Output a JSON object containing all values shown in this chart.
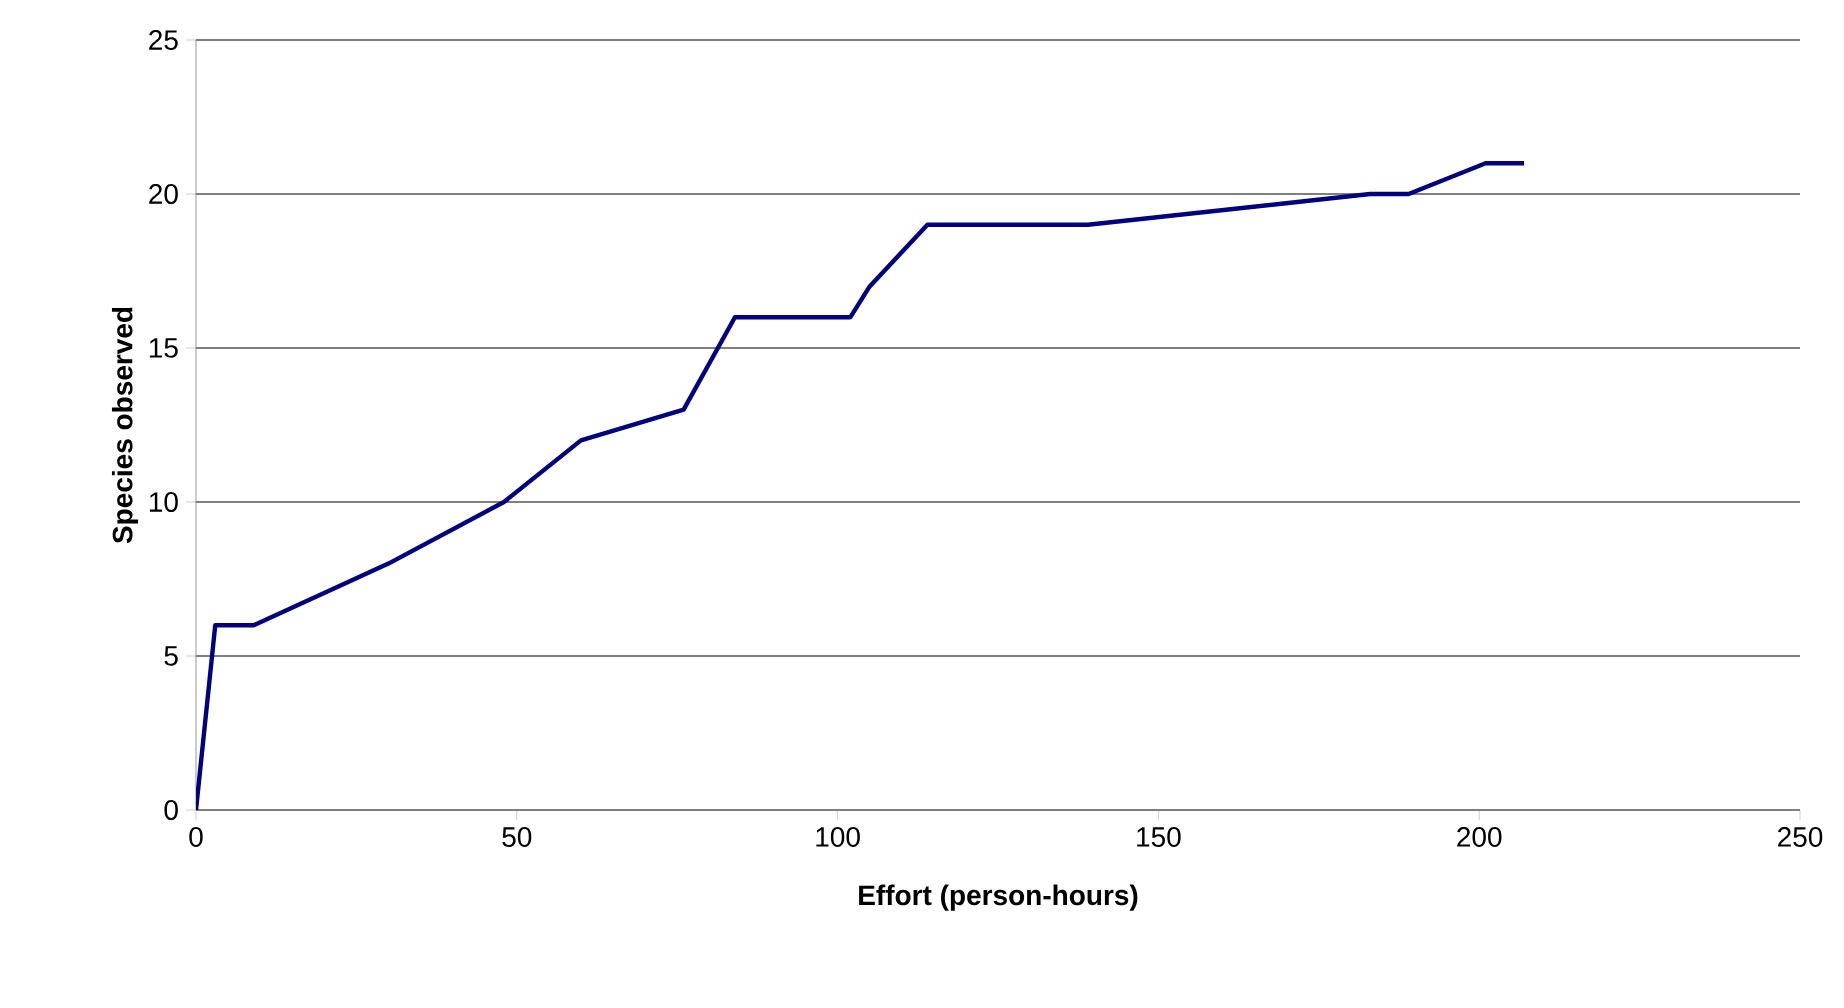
{
  "chart_data": {
    "type": "line",
    "xlabel": "Effort (person-hours)",
    "ylabel": "Species observed",
    "x": [
      0,
      3,
      9,
      30,
      48,
      60,
      76,
      84,
      102,
      105,
      114,
      139,
      183,
      189,
      201,
      207
    ],
    "values": [
      0,
      6,
      6,
      8,
      10,
      12,
      13,
      16,
      16,
      17,
      19,
      19,
      20,
      20,
      21,
      21
    ],
    "color": "#000080",
    "xlim": [
      0,
      250
    ],
    "xticks": [
      0,
      50,
      100,
      150,
      200,
      250
    ],
    "ylim": [
      0,
      25
    ],
    "yticks": [
      0,
      5,
      10,
      15,
      20,
      25
    ],
    "grid": "y",
    "marker": "none",
    "line_style": "solid"
  }
}
